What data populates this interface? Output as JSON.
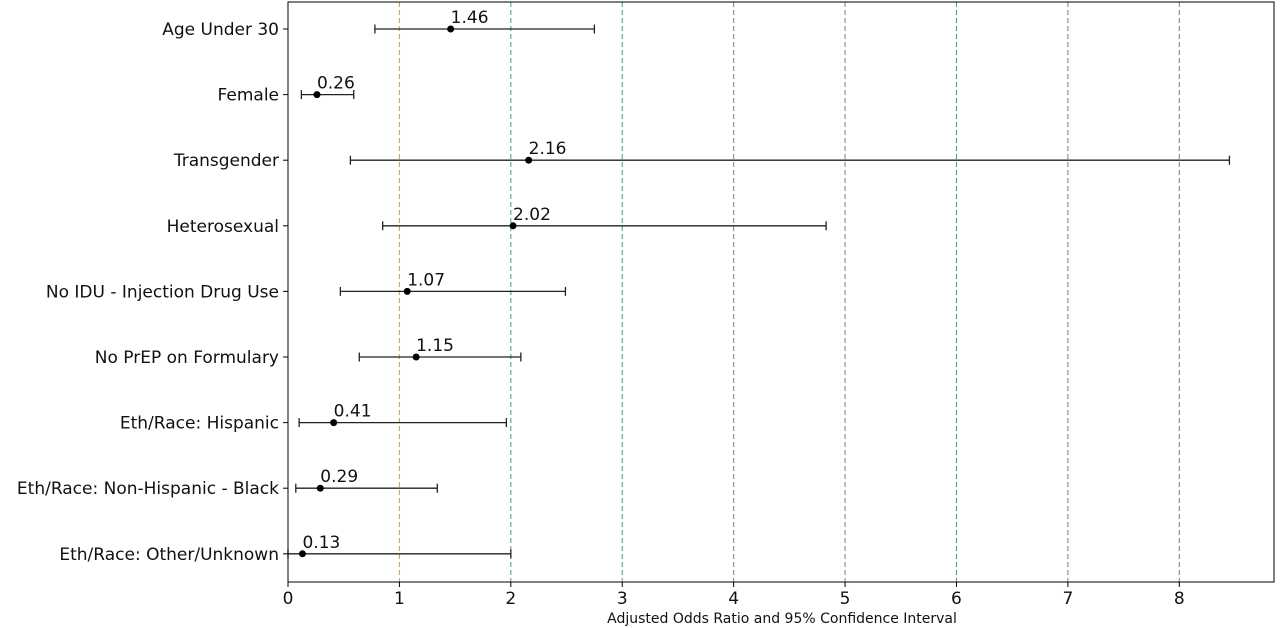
{
  "chart_data": {
    "type": "forest",
    "xlabel": "Adjusted Odds Ratio and 95% Confidence Interval",
    "ylabel": "",
    "xlim": [
      0,
      8.85
    ],
    "xticks": [
      0,
      1,
      2,
      3,
      4,
      5,
      6,
      7,
      8
    ],
    "reference_line": 1,
    "grid": "vertical dashed lines at x = 2 to 8",
    "categories": [
      "Age Under 30",
      "Female",
      "Transgender",
      "Heterosexual",
      "No IDU - Injection Drug Use",
      "No PrEP on Formulary",
      "Eth/Race: Hispanic",
      "Eth/Race: Non-Hispanic - Black",
      "Eth/Race: Other/Unknown"
    ],
    "series": [
      {
        "estimate": [
          1.46,
          0.26,
          2.16,
          2.02,
          1.07,
          1.15,
          0.41,
          0.29,
          0.13
        ],
        "ci_lower": [
          0.78,
          0.12,
          0.56,
          0.85,
          0.47,
          0.64,
          0.1,
          0.07,
          0.0
        ],
        "ci_upper": [
          2.75,
          0.59,
          8.45,
          4.83,
          2.49,
          2.09,
          1.96,
          1.34,
          2.0
        ],
        "labels": [
          "1.46",
          "0.26",
          "2.16",
          "2.02",
          "1.07",
          "1.15",
          "0.41",
          "0.29",
          "0.13"
        ]
      }
    ],
    "colors": {
      "reference": "#f5a623",
      "grid": "#5f8a8b",
      "marker": "#000000",
      "errorbar": "#222222"
    }
  }
}
